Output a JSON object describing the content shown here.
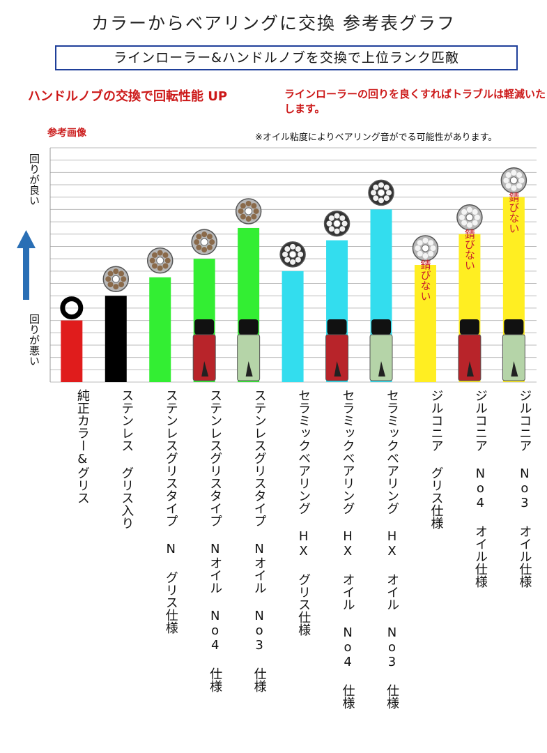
{
  "header": {
    "title": "カラーからベアリングに交換 参考表グラフ",
    "subtitle": "ラインローラー&ハンドルノブを交換で上位ランク匹敵",
    "tagline_left": "ハンドルノブの交換で回転性能 UP",
    "tagline_right": "ラインローラーの回りを良くすればトラブルは軽減いたします。",
    "ref_label": "参考画像",
    "note": "※オイル粘度によりベアリング音がでる可能性があります。"
  },
  "y_axis": {
    "top_label": "回りが良い",
    "bottom_label": "回りが悪い"
  },
  "colors": {
    "red": "#e01c1c",
    "black": "#000000",
    "green": "#33ee33",
    "cyan": "#33ddee",
    "yellow": "#ffee22",
    "grid": "#bbbbbb",
    "arrow": "#2a6fb5",
    "border": "#1f3f99"
  },
  "chart_data": {
    "type": "bar",
    "categories": [
      "純正カラー&グリス",
      "ステンレス グリス入り",
      "ステンレスグリスタイプ N グリス仕様",
      "ステンレスグリスタイプ Nオイル No4 仕様",
      "ステンレスグリスタイプ Nオイル No3 仕様",
      "セラミックベアリング HX グリス仕様",
      "セラミックベアリング HX オイル No4 仕様",
      "セラミックベアリング HX オイル No3 仕様",
      "ジルコニア グリス仕様",
      "ジルコニア No4 オイル仕様",
      "ジルコニア No3 オイル仕様"
    ],
    "values": [
      5,
      7,
      8.5,
      10,
      12.5,
      9,
      11.5,
      14,
      9.5,
      12,
      15
    ],
    "bar_colors": [
      "red",
      "black",
      "green",
      "green",
      "green",
      "cyan",
      "cyan",
      "cyan",
      "yellow",
      "yellow",
      "yellow"
    ],
    "bar_text": [
      "",
      "",
      "",
      "",
      "",
      "",
      "",
      "",
      "錆びない",
      "錆びない",
      "錆びない"
    ],
    "ylim": [
      0,
      19
    ],
    "grid": true
  }
}
